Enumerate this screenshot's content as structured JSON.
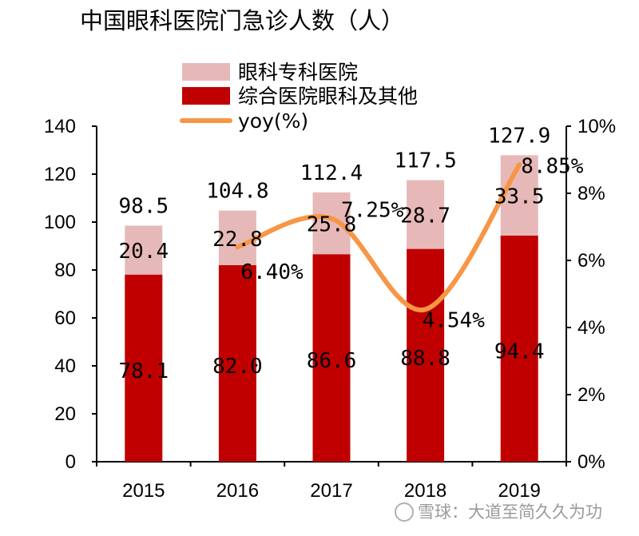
{
  "chart_data": {
    "type": "bar",
    "title": "中国眼科医院门急诊人数（人）",
    "categories": [
      "2015",
      "2016",
      "2017",
      "2018",
      "2019"
    ],
    "series": [
      {
        "name": "综合医院眼科及其他",
        "kind": "bar-stacked",
        "color": "#c00000",
        "values": [
          78.1,
          82.0,
          86.6,
          88.8,
          94.4
        ],
        "labels": [
          "78.1",
          "82.0",
          "86.6",
          "88.8",
          "94.4"
        ]
      },
      {
        "name": "眼科专科医院",
        "kind": "bar-stacked",
        "color": "#e6b9b8",
        "values": [
          20.4,
          22.8,
          25.8,
          28.7,
          33.5
        ],
        "labels": [
          "20.4",
          "22.8",
          "25.8",
          "28.7",
          "33.5"
        ]
      },
      {
        "name": "yoy(%)",
        "kind": "line",
        "axis": "right",
        "color": "#f79646",
        "values": [
          null,
          6.4,
          7.25,
          4.54,
          8.85
        ],
        "labels": [
          "",
          "6.40%",
          "7.25%",
          "4.54%",
          "8.85%"
        ]
      }
    ],
    "totals": [
      98.5,
      104.8,
      112.4,
      117.5,
      127.9
    ],
    "total_labels": [
      "98.5",
      "104.8",
      "112.4",
      "117.5",
      "127.9"
    ],
    "y_left": {
      "min": 0,
      "max": 140,
      "step": 20,
      "ticks": [
        "0",
        "20",
        "40",
        "60",
        "80",
        "100",
        "120",
        "140"
      ]
    },
    "y_right": {
      "min": 0,
      "max": 10,
      "step": 2,
      "ticks": [
        "0%",
        "2%",
        "4%",
        "6%",
        "8%",
        "10%"
      ]
    },
    "xlabel": "",
    "ylabel": "",
    "grid": false,
    "legend_position": "top-center"
  },
  "watermark": {
    "text": "雪球：大道至简久久为功"
  },
  "colors": {
    "line": "#f79646",
    "bar_bottom": "#c00000",
    "bar_top": "#e6b9b8"
  }
}
